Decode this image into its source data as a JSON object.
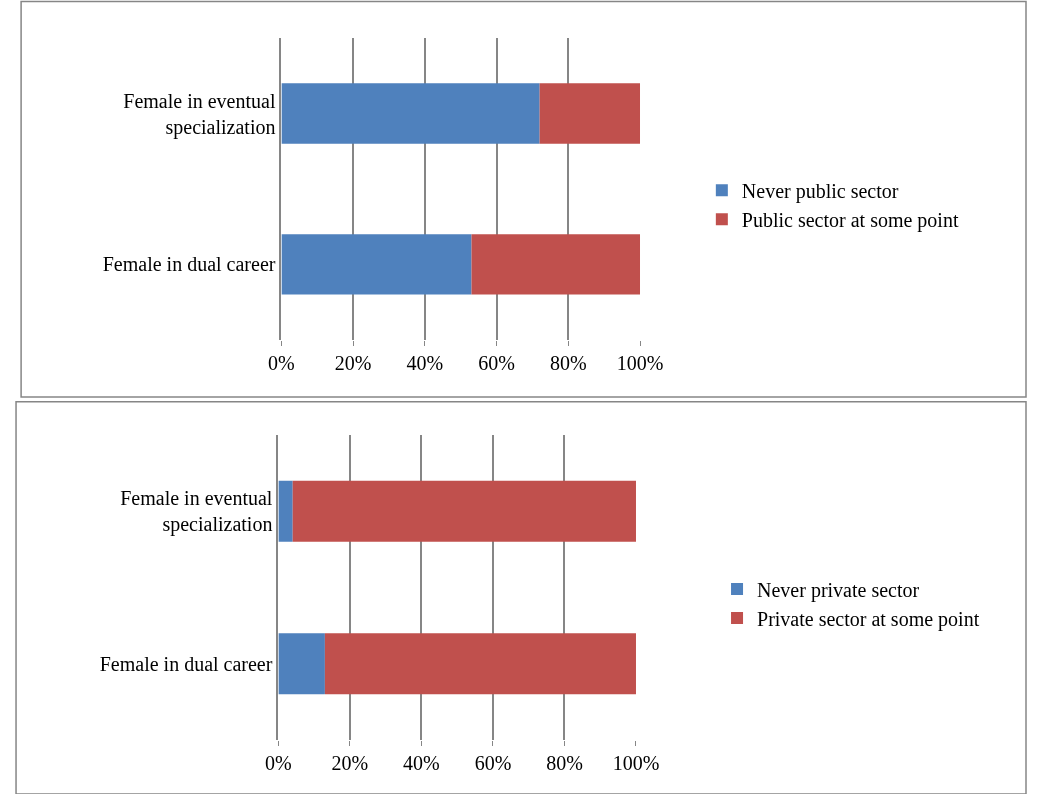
{
  "chart_data": [
    {
      "type": "bar",
      "orientation": "horizontal",
      "stacked": true,
      "categories": [
        "Female in eventual specialization",
        "Female in dual career"
      ],
      "series": [
        {
          "name": "Never public sector",
          "color": "#4f81bd",
          "values": [
            72,
            53
          ]
        },
        {
          "name": "Public sector at some point",
          "color": "#c0504d",
          "values": [
            28,
            47
          ]
        }
      ],
      "xlim": [
        0,
        100
      ],
      "xticks": [
        {
          "value": 0,
          "label": "0%"
        },
        {
          "value": 20,
          "label": "20%"
        },
        {
          "value": 40,
          "label": "40%"
        },
        {
          "value": 60,
          "label": "60%"
        },
        {
          "value": 80,
          "label": "80%"
        },
        {
          "value": 100,
          "label": "100%"
        }
      ],
      "grid": "x",
      "legend": "right"
    },
    {
      "type": "bar",
      "orientation": "horizontal",
      "stacked": true,
      "categories": [
        "Female in eventual specialization",
        "Female in dual career"
      ],
      "series": [
        {
          "name": "Never private sector",
          "color": "#4f81bd",
          "values": [
            4,
            13
          ]
        },
        {
          "name": "Private sector at some point",
          "color": "#c0504d",
          "values": [
            96,
            87
          ]
        }
      ],
      "xlim": [
        0,
        100
      ],
      "xticks": [
        {
          "value": 0,
          "label": "0%"
        },
        {
          "value": 20,
          "label": "20%"
        },
        {
          "value": 40,
          "label": "40%"
        },
        {
          "value": 60,
          "label": "60%"
        },
        {
          "value": 80,
          "label": "80%"
        },
        {
          "value": 100,
          "label": "100%"
        }
      ],
      "grid": "x",
      "legend": "right"
    }
  ]
}
